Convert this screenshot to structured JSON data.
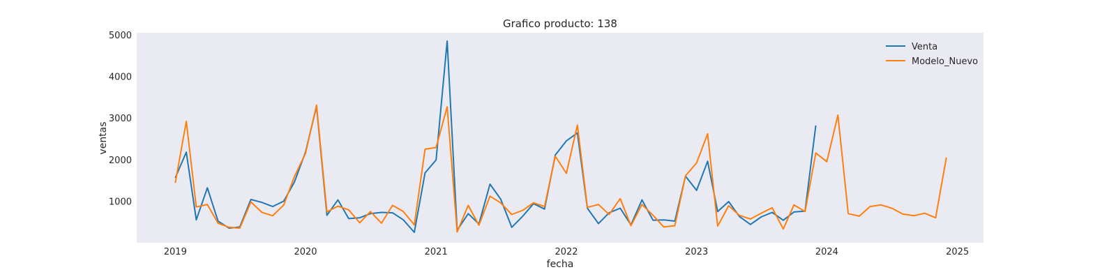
{
  "chart_data": {
    "type": "line",
    "title": "Grafico producto: 138",
    "xlabel": "fecha",
    "ylabel": "ventas",
    "xlim": [
      "2018-09-15",
      "2025-03-15"
    ],
    "ylim": [
      0,
      5050
    ],
    "x_ticks": [
      "2019",
      "2020",
      "2021",
      "2022",
      "2023",
      "2024",
      "2025"
    ],
    "y_ticks": [
      1000,
      2000,
      3000,
      4000,
      5000
    ],
    "grid": false,
    "legend_position": "top-right",
    "start_month": "2019-01",
    "series": [
      {
        "name": "Venta",
        "color": "#1f77b4",
        "values": [
          1560,
          2180,
          550,
          1320,
          520,
          350,
          380,
          1040,
          970,
          870,
          1000,
          1460,
          2180,
          3280,
          660,
          1030,
          580,
          600,
          700,
          730,
          720,
          550,
          250,
          1680,
          1990,
          4850,
          300,
          700,
          450,
          1410,
          1050,
          370,
          640,
          940,
          810,
          2110,
          2450,
          2640,
          830,
          460,
          720,
          830,
          430,
          1030,
          540,
          550,
          520,
          1600,
          1260,
          1960,
          750,
          990,
          630,
          440,
          620,
          730,
          540,
          740,
          760,
          2820
        ]
      },
      {
        "name": "Modelo_Nuevo",
        "color": "#ff7f0e",
        "values": [
          1440,
          2920,
          860,
          920,
          470,
          370,
          350,
          980,
          730,
          650,
          910,
          1590,
          2150,
          3310,
          740,
          880,
          790,
          480,
          750,
          470,
          900,
          750,
          430,
          2250,
          2290,
          3270,
          260,
          900,
          420,
          1120,
          960,
          680,
          780,
          960,
          870,
          2080,
          1670,
          2830,
          850,
          920,
          680,
          1060,
          410,
          920,
          660,
          380,
          410,
          1610,
          1920,
          2620,
          400,
          890,
          660,
          570,
          710,
          840,
          330,
          910,
          750,
          2160,
          1950,
          3070,
          700,
          640,
          870,
          910,
          830,
          690,
          650,
          710,
          600,
          2050
        ]
      }
    ]
  }
}
